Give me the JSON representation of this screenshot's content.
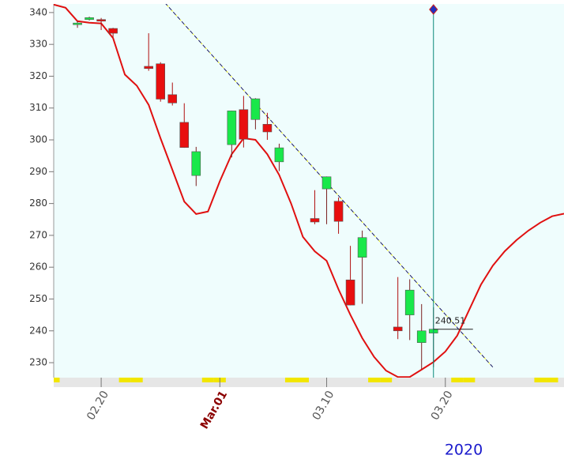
{
  "chart_data": {
    "type": "candlestick",
    "year": "2020",
    "x": [
      "02.18",
      "02.19",
      "02.20",
      "02.21",
      "02.24",
      "02.25",
      "02.26",
      "02.27",
      "02.28",
      "03.02",
      "03.03",
      "03.04",
      "03.05",
      "03.06",
      "03.09",
      "03.10",
      "03.11",
      "03.12",
      "03.13",
      "03.16",
      "03.17",
      "03.18",
      "03.19"
    ],
    "open": [
      336.5,
      337.8,
      337.8,
      335.0,
      323.1,
      323.9,
      314.2,
      305.5,
      288.8,
      298.5,
      309.5,
      306.4,
      304.9,
      293.1,
      275.3,
      284.6,
      280.7,
      256.0,
      263.1,
      241.2,
      245.0,
      236.3,
      239.3
    ],
    "high": [
      337.3,
      338.7,
      338.3,
      335.2,
      333.5,
      324.4,
      318.0,
      311.5,
      297.8,
      309.2,
      313.8,
      313.1,
      308.5,
      298.8,
      284.2,
      288.5,
      281.9,
      266.7,
      271.5,
      256.9,
      256.2,
      248.4,
      247.4
    ],
    "low": [
      335.2,
      337.5,
      334.5,
      332.2,
      321.7,
      312.0,
      310.8,
      297.5,
      285.5,
      294.5,
      297.6,
      303.3,
      300.0,
      290.2,
      273.5,
      273.5,
      270.5,
      248.0,
      248.5,
      237.4,
      237.1,
      228.0,
      228.6
    ],
    "close": [
      336.7,
      338.4,
      337.3,
      333.5,
      322.4,
      312.8,
      311.6,
      297.6,
      296.3,
      309.1,
      300.2,
      312.9,
      302.5,
      297.5,
      274.2,
      288.4,
      274.4,
      248.1,
      269.3,
      240.0,
      252.8,
      240.0,
      240.51
    ],
    "up_color": "#19e84a",
    "down_color": "#e80f0f",
    "curve": {
      "color": "#e01010",
      "x": [
        "02.16",
        "02.17",
        "02.18",
        "02.19",
        "02.20",
        "02.21",
        "02.22",
        "02.23",
        "02.24",
        "02.25",
        "02.26",
        "02.27",
        "02.28",
        "02.29",
        "03.01",
        "03.02",
        "03.03",
        "03.04",
        "03.05",
        "03.06",
        "03.07",
        "03.08",
        "03.09",
        "03.10",
        "03.11",
        "03.12",
        "03.13",
        "03.14",
        "03.15",
        "03.16",
        "03.17",
        "03.18",
        "03.19",
        "03.20",
        "03.21",
        "03.22",
        "03.23",
        "03.24",
        "03.25",
        "03.26",
        "03.27",
        "03.28",
        "03.29",
        "03.30"
      ],
      "values": [
        342.5,
        341.5,
        337.3,
        336.8,
        336.6,
        332,
        320.5,
        317,
        311,
        300.5,
        290.6,
        280.6,
        276.7,
        277.5,
        287,
        295.5,
        300.5,
        300,
        295.5,
        289,
        280,
        269.5,
        265,
        262,
        253,
        245,
        237.7,
        231.8,
        227.5,
        225.5,
        225.5,
        227.8,
        230.2,
        233.5,
        238.5,
        246.5,
        254.5,
        260.5,
        265,
        268.5,
        271.5,
        274,
        276,
        276.8
      ]
    },
    "trendline": {
      "color": "#1a1a60",
      "x": [
        "02.25",
        "03.24"
      ],
      "values": [
        344.6,
        228.6
      ]
    },
    "cursor": {
      "x": "03.19",
      "value": 240.51
    },
    "xlim": [
      "02.16",
      "03.30"
    ],
    "xticks": [
      "02.20",
      {
        "value": "03.01",
        "label": "Mar.01"
      },
      "03.10",
      "03.20"
    ],
    "ylim": [
      225.3,
      342.7
    ],
    "yticks": [
      230,
      240,
      250,
      260,
      270,
      280,
      290,
      300,
      310,
      320,
      330,
      340
    ]
  }
}
